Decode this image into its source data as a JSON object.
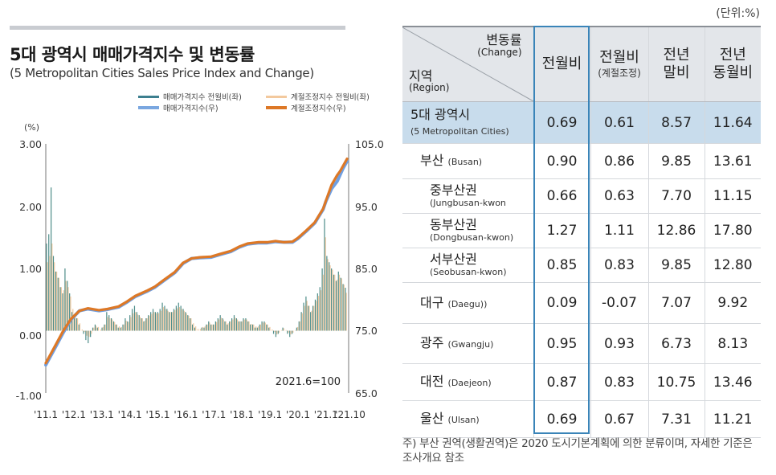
{
  "unit_note": "(단위:%)",
  "chart": {
    "title": "5대 광역시 매매가격지수 및 변동률",
    "subtitle": "(5 Metropolitan Cities Sales Price Index and Change)",
    "legend": [
      {
        "label": "매매가격지수 전월비(좌)",
        "color": "#3d7f8f"
      },
      {
        "label": "계절조정지수 전월비(좌)",
        "color": "#f3c99e"
      },
      {
        "label": "매매가격지수(우)",
        "color": "#7aa7e0"
      },
      {
        "label": "계절조정지수(우)",
        "color": "#dd7826"
      }
    ],
    "left_axis_unit": "(%)",
    "left_ticks": [
      "3.00",
      "2.00",
      "1.00",
      "0.00",
      "-1.00"
    ],
    "right_ticks": [
      "105.0",
      "95.0",
      "85.0",
      "75.0",
      "65.0"
    ],
    "x_ticks": [
      "'11.1",
      "'12.1",
      "'13.1",
      "'14.1",
      "'15.1",
      "'16.1",
      "'17.1",
      "'18.1",
      "'19.1",
      "'20.1",
      "'21.1",
      "'21.10"
    ],
    "base_note": "2021.6=100"
  },
  "chart_data": {
    "type": "bar+line",
    "title": "5대 광역시 매매가격지수 및 변동률",
    "subtitle": "(5 Metropolitan Cities Sales Price Index and Change)",
    "left_ylim": [
      -1.0,
      3.0
    ],
    "right_ylim": [
      65.0,
      105.0
    ],
    "x_range": [
      "2011.1",
      "2021.10"
    ],
    "note": "2021.6=100",
    "series": [
      {
        "name": "매매가격지수 전월비(좌)",
        "type": "bar",
        "axis": "left",
        "values": [
          1.4,
          1.55,
          2.3,
          1.2,
          0.95,
          0.85,
          0.7,
          0.6,
          1.0,
          0.8,
          0.6,
          0.3,
          0.25,
          0.2,
          0.1,
          0.0,
          -0.05,
          -0.15,
          -0.2,
          -0.1,
          0.05,
          0.1,
          0.05,
          0.0,
          0.05,
          0.1,
          0.3,
          0.25,
          0.2,
          0.15,
          0.1,
          0.05,
          0.05,
          0.1,
          0.2,
          0.15,
          0.25,
          0.35,
          0.4,
          0.3,
          0.25,
          0.2,
          0.15,
          0.2,
          0.25,
          0.3,
          0.35,
          0.3,
          0.3,
          0.35,
          0.45,
          0.4,
          0.35,
          0.3,
          0.3,
          0.35,
          0.4,
          0.45,
          0.4,
          0.35,
          0.3,
          0.25,
          0.2,
          0.1,
          0.05,
          0.0,
          0.0,
          0.05,
          0.05,
          0.1,
          0.15,
          0.1,
          0.1,
          0.15,
          0.2,
          0.25,
          0.2,
          0.15,
          0.1,
          0.15,
          0.2,
          0.25,
          0.2,
          0.15,
          0.15,
          0.2,
          0.2,
          0.15,
          0.1,
          0.1,
          0.05,
          0.05,
          0.1,
          0.15,
          0.15,
          0.1,
          0.05,
          0.0,
          -0.05,
          -0.1,
          -0.05,
          0.0,
          0.05,
          0.0,
          -0.05,
          -0.1,
          -0.05,
          0.0,
          0.05,
          0.15,
          0.3,
          0.45,
          0.55,
          0.4,
          0.3,
          0.4,
          0.5,
          0.6,
          0.7,
          1.0,
          1.8,
          1.2,
          1.1,
          1.0,
          0.9,
          0.8,
          0.95,
          0.85,
          0.75,
          0.69
        ]
      },
      {
        "name": "계절조정지수 전월비(좌)",
        "type": "bar",
        "axis": "left",
        "values": [
          1.1,
          1.2,
          1.4,
          1.1,
          0.95,
          0.85,
          0.7,
          0.65,
          0.8,
          0.7,
          0.55,
          0.35,
          0.25,
          0.2,
          0.12,
          0.02,
          -0.02,
          -0.08,
          -0.1,
          -0.05,
          0.05,
          0.08,
          0.06,
          0.02,
          0.06,
          0.1,
          0.22,
          0.2,
          0.18,
          0.14,
          0.1,
          0.07,
          0.06,
          0.1,
          0.16,
          0.14,
          0.22,
          0.28,
          0.3,
          0.26,
          0.22,
          0.2,
          0.16,
          0.2,
          0.24,
          0.27,
          0.3,
          0.28,
          0.28,
          0.32,
          0.38,
          0.35,
          0.32,
          0.3,
          0.3,
          0.33,
          0.36,
          0.38,
          0.35,
          0.32,
          0.28,
          0.24,
          0.2,
          0.12,
          0.07,
          0.03,
          0.03,
          0.06,
          0.07,
          0.1,
          0.13,
          0.1,
          0.1,
          0.14,
          0.18,
          0.21,
          0.18,
          0.15,
          0.12,
          0.15,
          0.18,
          0.21,
          0.18,
          0.15,
          0.15,
          0.18,
          0.18,
          0.15,
          0.11,
          0.1,
          0.07,
          0.07,
          0.1,
          0.13,
          0.13,
          0.1,
          0.06,
          0.02,
          -0.02,
          -0.06,
          -0.03,
          0.01,
          0.04,
          0.01,
          -0.03,
          -0.06,
          -0.03,
          0.01,
          0.06,
          0.15,
          0.28,
          0.4,
          0.48,
          0.4,
          0.32,
          0.4,
          0.48,
          0.56,
          0.65,
          0.9,
          1.5,
          1.15,
          1.05,
          0.98,
          0.9,
          0.82,
          0.9,
          0.84,
          0.74,
          0.61
        ]
      },
      {
        "name": "매매가격지수(우)",
        "type": "line",
        "axis": "right",
        "points": [
          [
            2011.0,
            69.5
          ],
          [
            2011.3,
            72.0
          ],
          [
            2011.6,
            74.5
          ],
          [
            2011.9,
            76.8
          ],
          [
            2012.2,
            78.2
          ],
          [
            2012.5,
            78.5
          ],
          [
            2012.9,
            78.2
          ],
          [
            2013.2,
            78.4
          ],
          [
            2013.6,
            78.8
          ],
          [
            2013.9,
            79.6
          ],
          [
            2014.2,
            80.5
          ],
          [
            2014.6,
            81.3
          ],
          [
            2014.9,
            82.0
          ],
          [
            2015.2,
            83.0
          ],
          [
            2015.6,
            84.3
          ],
          [
            2015.9,
            85.8
          ],
          [
            2016.2,
            86.6
          ],
          [
            2016.5,
            86.7
          ],
          [
            2016.9,
            86.8
          ],
          [
            2017.2,
            87.2
          ],
          [
            2017.6,
            87.7
          ],
          [
            2017.9,
            88.4
          ],
          [
            2018.2,
            88.9
          ],
          [
            2018.6,
            89.1
          ],
          [
            2018.9,
            89.1
          ],
          [
            2019.2,
            89.3
          ],
          [
            2019.5,
            89.2
          ],
          [
            2019.8,
            89.2
          ],
          [
            2020.0,
            89.8
          ],
          [
            2020.3,
            91.0
          ],
          [
            2020.6,
            92.3
          ],
          [
            2020.9,
            94.5
          ],
          [
            2021.0,
            95.8
          ],
          [
            2021.2,
            97.8
          ],
          [
            2021.4,
            99.0
          ],
          [
            2021.5,
            100.0
          ],
          [
            2021.6,
            101.0
          ],
          [
            2021.75,
            102.2
          ]
        ]
      },
      {
        "name": "계절조정지수(우)",
        "type": "line",
        "axis": "right",
        "points": [
          [
            2011.0,
            69.8
          ],
          [
            2011.3,
            72.3
          ],
          [
            2011.6,
            74.8
          ],
          [
            2011.9,
            76.9
          ],
          [
            2012.2,
            78.2
          ],
          [
            2012.5,
            78.6
          ],
          [
            2012.9,
            78.3
          ],
          [
            2013.2,
            78.5
          ],
          [
            2013.6,
            78.9
          ],
          [
            2013.9,
            79.7
          ],
          [
            2014.2,
            80.6
          ],
          [
            2014.6,
            81.4
          ],
          [
            2014.9,
            82.1
          ],
          [
            2015.2,
            83.1
          ],
          [
            2015.6,
            84.4
          ],
          [
            2015.9,
            85.9
          ],
          [
            2016.2,
            86.6
          ],
          [
            2016.5,
            86.8
          ],
          [
            2016.9,
            86.9
          ],
          [
            2017.2,
            87.3
          ],
          [
            2017.6,
            87.8
          ],
          [
            2017.9,
            88.5
          ],
          [
            2018.2,
            89.0
          ],
          [
            2018.6,
            89.2
          ],
          [
            2018.9,
            89.2
          ],
          [
            2019.2,
            89.4
          ],
          [
            2019.5,
            89.2
          ],
          [
            2019.8,
            89.3
          ],
          [
            2020.0,
            89.9
          ],
          [
            2020.3,
            91.1
          ],
          [
            2020.6,
            92.4
          ],
          [
            2020.9,
            94.6
          ],
          [
            2021.0,
            95.9
          ],
          [
            2021.2,
            98.4
          ],
          [
            2021.4,
            100.0
          ],
          [
            2021.5,
            100.6
          ],
          [
            2021.6,
            101.4
          ],
          [
            2021.75,
            102.6
          ]
        ]
      }
    ]
  },
  "table": {
    "header": {
      "change_label": "변동률",
      "change_en": "(Change)",
      "region_label": "지역",
      "region_en": "(Region)",
      "col1": "전월비",
      "col2": "전월비",
      "col2_sub": "(계절조정)",
      "col3a": "전년",
      "col3b": "말비",
      "col4a": "전년",
      "col4b": "동월비"
    },
    "rows": [
      {
        "name": "5대 광역시",
        "en": "(5 Metropolitan Cities)",
        "v1": "0.69",
        "v2": "0.61",
        "v3": "8.57",
        "v4": "11.64"
      },
      {
        "name": "부산",
        "en": "(Busan)",
        "v1": "0.90",
        "v2": "0.86",
        "v3": "9.85",
        "v4": "13.61"
      },
      {
        "name": "중부산권",
        "en": "(Jungbusan-kwon",
        "v1": "0.66",
        "v2": "0.63",
        "v3": "7.70",
        "v4": "11.15"
      },
      {
        "name": "동부산권",
        "en": "(Dongbusan-kwon)",
        "v1": "1.27",
        "v2": "1.11",
        "v3": "12.86",
        "v4": "17.80"
      },
      {
        "name": "서부산권",
        "en": "(Seobusan-kwon)",
        "v1": "0.85",
        "v2": "0.83",
        "v3": "9.85",
        "v4": "12.80"
      },
      {
        "name": "대구",
        "en": "(Daegu))",
        "v1": "0.09",
        "v2": "-0.07",
        "v3": "7.07",
        "v4": "9.92"
      },
      {
        "name": "광주",
        "en": "(Gwangju)",
        "v1": "0.95",
        "v2": "0.93",
        "v3": "6.73",
        "v4": "8.13"
      },
      {
        "name": "대전",
        "en": "(Daejeon)",
        "v1": "0.87",
        "v2": "0.83",
        "v3": "10.75",
        "v4": "13.46"
      },
      {
        "name": "울산",
        "en": "(Ulsan)",
        "v1": "0.69",
        "v2": "0.67",
        "v3": "7.31",
        "v4": "11.21"
      }
    ],
    "footnote": "주) 부산 권역(생활권역)은 2020 도시기본계획에 의한 분류이며, 자세한 기준은 조사개요 참조"
  }
}
